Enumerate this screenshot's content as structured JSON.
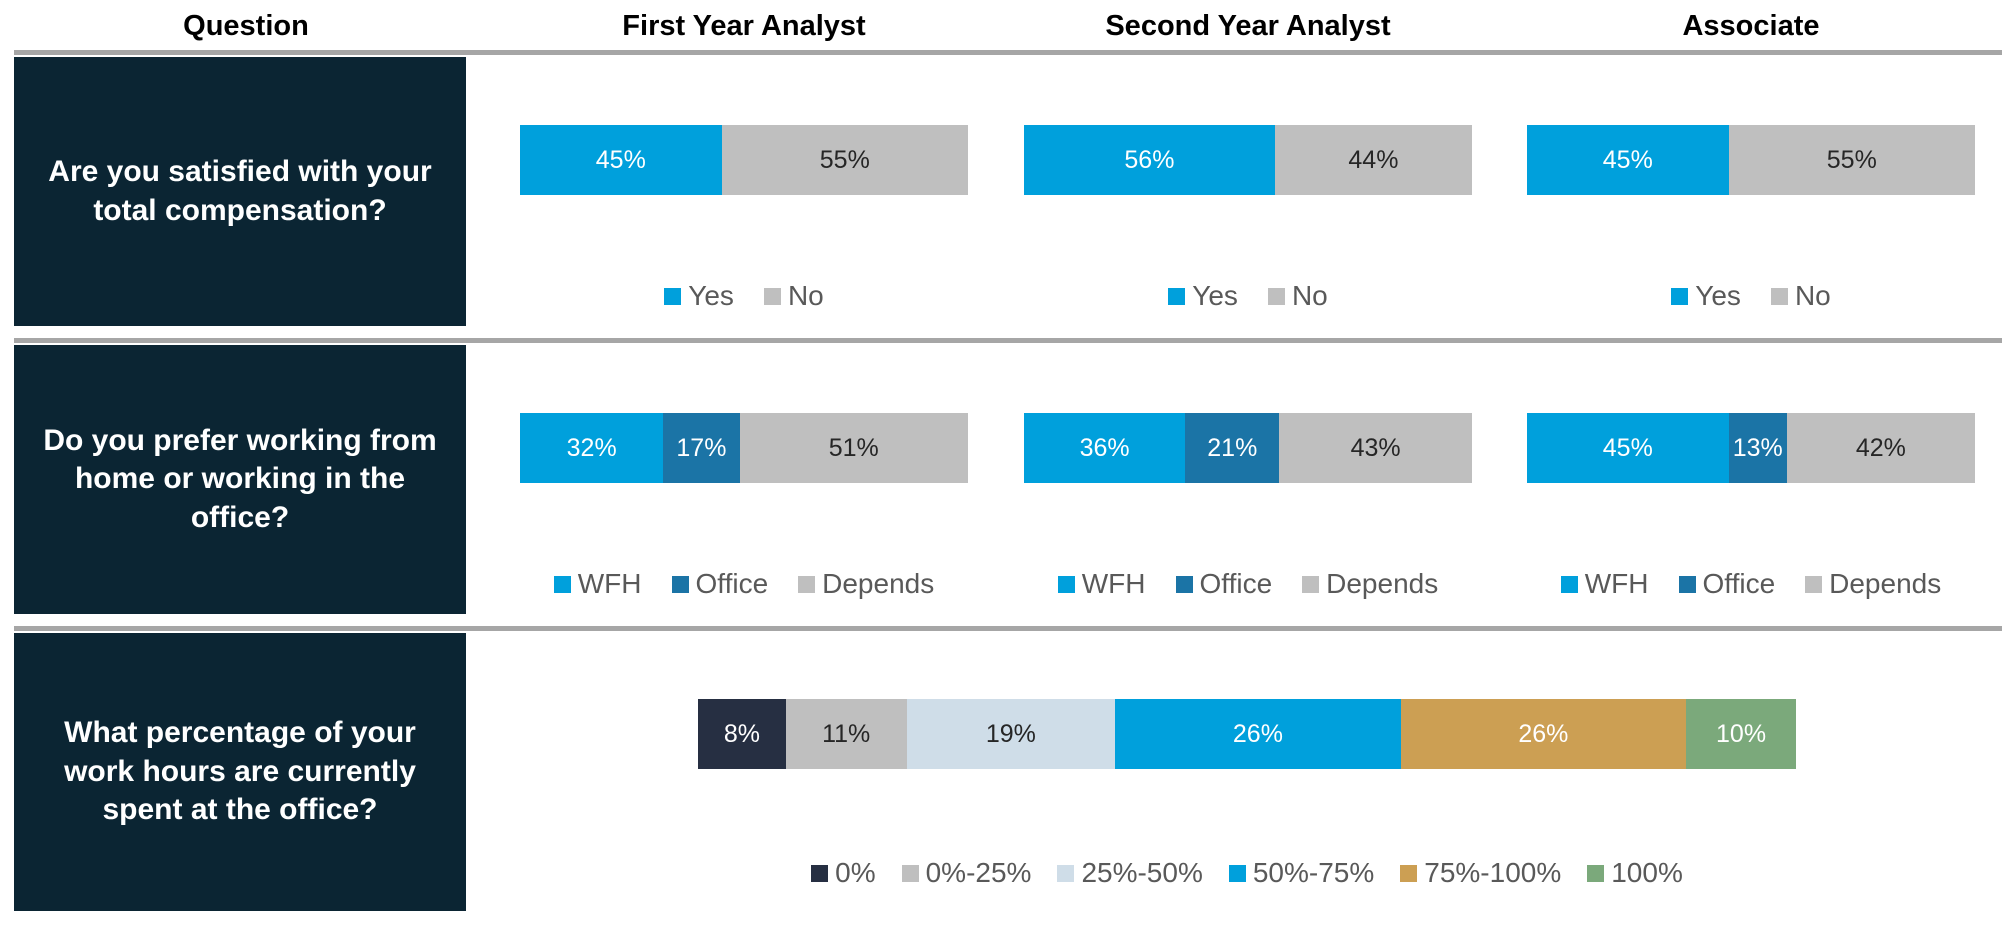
{
  "header": {
    "columns": [
      "Question",
      "First Year Analyst",
      "Second Year Analyst",
      "Associate"
    ]
  },
  "colors": {
    "question_box_bg": "#0B2533",
    "question_text": "#FFFFFF",
    "divider_rule": "#A6A6A6",
    "header_text": "#000000",
    "legend_text": "#595959",
    "label_on_light": "#262626",
    "label_on_dark": "#FFFFFF",
    "accent_blue": "#00A0DC",
    "accent_dark_blue": "#1B74A6",
    "accent_gray": "#BFBFBF",
    "accent_navy": "#262F42",
    "accent_light_blue": "#CFDDE8",
    "accent_gold": "#CC9F53",
    "accent_green": "#7BA97B"
  },
  "chart_data": [
    {
      "type": "bar",
      "stacked": true,
      "orientation": "horizontal",
      "question": "Are you satisfied with your total compensation?",
      "categories": [
        "First Year Analyst",
        "Second Year Analyst",
        "Associate"
      ],
      "xlim": [
        0,
        100
      ],
      "axis_visible": false,
      "grid": false,
      "legend_position": "bottom",
      "data_labels": "percent",
      "series": [
        {
          "name": "Yes",
          "color": "#00A0DC",
          "values": [
            45,
            56,
            45
          ],
          "labels": [
            "45%",
            "56%",
            "45%"
          ]
        },
        {
          "name": "No",
          "color": "#BFBFBF",
          "values": [
            55,
            44,
            55
          ],
          "labels": [
            "55%",
            "44%",
            "55%"
          ]
        }
      ]
    },
    {
      "type": "bar",
      "stacked": true,
      "orientation": "horizontal",
      "question": "Do you prefer working from home or working in the office?",
      "categories": [
        "First Year Analyst",
        "Second Year Analyst",
        "Associate"
      ],
      "xlim": [
        0,
        100
      ],
      "axis_visible": false,
      "grid": false,
      "legend_position": "bottom",
      "data_labels": "percent",
      "series": [
        {
          "name": "WFH",
          "color": "#00A0DC",
          "values": [
            32,
            36,
            45
          ],
          "labels": [
            "32%",
            "36%",
            "45%"
          ]
        },
        {
          "name": "Office",
          "color": "#1B74A6",
          "values": [
            17,
            21,
            13
          ],
          "labels": [
            "17%",
            "21%",
            "13%"
          ]
        },
        {
          "name": "Depends",
          "color": "#BFBFBF",
          "values": [
            51,
            43,
            42
          ],
          "labels": [
            "51%",
            "43%",
            "42%"
          ]
        }
      ]
    },
    {
      "type": "bar",
      "stacked": true,
      "orientation": "horizontal",
      "question": "What percentage of your work hours are currently spent at the office?",
      "categories": [
        ""
      ],
      "xlim": [
        0,
        100
      ],
      "axis_visible": false,
      "grid": false,
      "legend_position": "bottom",
      "data_labels": "percent",
      "series": [
        {
          "name": "0%",
          "color": "#262F42",
          "values": [
            8
          ],
          "labels": [
            "8%"
          ]
        },
        {
          "name": "0%-25%",
          "color": "#BFBFBF",
          "values": [
            11
          ],
          "labels": [
            "11%"
          ]
        },
        {
          "name": "25%-50%",
          "color": "#CFDDE8",
          "values": [
            19
          ],
          "labels": [
            "19%"
          ]
        },
        {
          "name": "50%-75%",
          "color": "#00A0DC",
          "values": [
            26
          ],
          "labels": [
            "26%"
          ]
        },
        {
          "name": "75%-100%",
          "color": "#CC9F53",
          "values": [
            26
          ],
          "labels": [
            "26%"
          ]
        },
        {
          "name": "100%",
          "color": "#7BA97B",
          "values": [
            10
          ],
          "labels": [
            "10%"
          ]
        }
      ]
    }
  ]
}
